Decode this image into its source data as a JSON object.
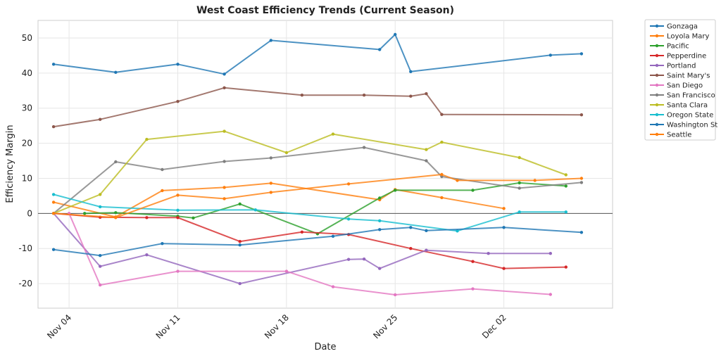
{
  "chart_data": {
    "type": "line",
    "title": "West Coast Efficiency Trends (Current Season)",
    "xlabel": "Date",
    "ylabel": "Efficiency Margin",
    "xlim": [
      "2024-11-02",
      "2024-12-09"
    ],
    "ylim": [
      -27,
      55
    ],
    "x_ticks": [
      {
        "date": "2024-11-04",
        "label": "Nov 04"
      },
      {
        "date": "2024-11-11",
        "label": "Nov 11"
      },
      {
        "date": "2024-11-18",
        "label": "Nov 18"
      },
      {
        "date": "2024-11-25",
        "label": "Nov 25"
      },
      {
        "date": "2024-12-02",
        "label": "Dec 02"
      }
    ],
    "y_ticks": [
      -20,
      -10,
      0,
      10,
      20,
      30,
      40,
      50
    ],
    "grid": true,
    "zero_line": true,
    "legend_position": "outside-right",
    "series": [
      {
        "name": "Gonzaga",
        "color": "#1f77b4",
        "points": [
          [
            "2024-11-03",
            42.5
          ],
          [
            "2024-11-07",
            40.2
          ],
          [
            "2024-11-11",
            42.5
          ],
          [
            "2024-11-14",
            39.7
          ],
          [
            "2024-11-17",
            49.3
          ],
          [
            "2024-11-24",
            46.7
          ],
          [
            "2024-11-25",
            51.0
          ],
          [
            "2024-11-26",
            40.4
          ],
          [
            "2024-12-05",
            45.1
          ],
          [
            "2024-12-07",
            45.5
          ]
        ]
      },
      {
        "name": "Loyola Mary",
        "color": "#ff7f0e",
        "points": [
          [
            "2024-11-03",
            3.2
          ],
          [
            "2024-11-07",
            -1.0
          ],
          [
            "2024-11-10",
            6.5
          ],
          [
            "2024-11-14",
            7.4
          ],
          [
            "2024-11-17",
            8.6
          ],
          [
            "2024-11-24",
            3.9
          ],
          [
            "2024-11-25",
            6.8
          ],
          [
            "2024-11-28",
            4.5
          ],
          [
            "2024-12-02",
            1.4
          ]
        ]
      },
      {
        "name": "Pacific",
        "color": "#2ca02c",
        "points": [
          [
            "2024-11-05",
            0.0
          ],
          [
            "2024-11-07",
            0.2
          ],
          [
            "2024-11-11",
            -0.8
          ],
          [
            "2024-11-12",
            -1.3
          ],
          [
            "2024-11-15",
            2.7
          ],
          [
            "2024-11-20",
            -5.8
          ],
          [
            "2024-11-24",
            4.4
          ],
          [
            "2024-11-25",
            6.6
          ],
          [
            "2024-11-30",
            6.6
          ],
          [
            "2024-12-03",
            8.7
          ],
          [
            "2024-12-06",
            7.8
          ]
        ]
      },
      {
        "name": "Pepperdine",
        "color": "#d62728",
        "points": [
          [
            "2024-11-03",
            0.0
          ],
          [
            "2024-11-06",
            -1.1
          ],
          [
            "2024-11-09",
            -1.2
          ],
          [
            "2024-11-11",
            -1.2
          ],
          [
            "2024-11-15",
            -8.0
          ],
          [
            "2024-11-19",
            -5.3
          ],
          [
            "2024-11-22",
            -6.0
          ],
          [
            "2024-11-26",
            -10.0
          ],
          [
            "2024-11-30",
            -13.7
          ],
          [
            "2024-12-02",
            -15.7
          ],
          [
            "2024-12-06",
            -15.3
          ]
        ]
      },
      {
        "name": "Portland",
        "color": "#9467bd",
        "points": [
          [
            "2024-11-03",
            0.0
          ],
          [
            "2024-11-06",
            -15.1
          ],
          [
            "2024-11-09",
            -11.8
          ],
          [
            "2024-11-15",
            -20.0
          ],
          [
            "2024-11-22",
            -13.1
          ],
          [
            "2024-11-23",
            -13.0
          ],
          [
            "2024-11-24",
            -15.7
          ],
          [
            "2024-11-27",
            -10.5
          ],
          [
            "2024-12-01",
            -11.4
          ],
          [
            "2024-12-05",
            -11.4
          ]
        ]
      },
      {
        "name": "Saint Mary's",
        "color": "#8c564b",
        "points": [
          [
            "2024-11-03",
            24.7
          ],
          [
            "2024-11-06",
            26.8
          ],
          [
            "2024-11-11",
            31.9
          ],
          [
            "2024-11-14",
            35.8
          ],
          [
            "2024-11-19",
            33.7
          ],
          [
            "2024-11-23",
            33.7
          ],
          [
            "2024-11-26",
            33.4
          ],
          [
            "2024-11-27",
            34.1
          ],
          [
            "2024-11-28",
            28.2
          ],
          [
            "2024-12-07",
            28.1
          ]
        ]
      },
      {
        "name": "San Diego",
        "color": "#e377c2",
        "points": [
          [
            "2024-11-04",
            0.0
          ],
          [
            "2024-11-06",
            -20.4
          ],
          [
            "2024-11-11",
            -16.5
          ],
          [
            "2024-11-18",
            -16.5
          ],
          [
            "2024-11-21",
            -20.9
          ],
          [
            "2024-11-25",
            -23.2
          ],
          [
            "2024-11-30",
            -21.5
          ],
          [
            "2024-12-05",
            -23.1
          ]
        ]
      },
      {
        "name": "San Francisco",
        "color": "#7f7f7f",
        "points": [
          [
            "2024-11-03",
            0.0
          ],
          [
            "2024-11-07",
            14.7
          ],
          [
            "2024-11-10",
            12.5
          ],
          [
            "2024-11-14",
            14.8
          ],
          [
            "2024-11-17",
            15.8
          ],
          [
            "2024-11-23",
            18.8
          ],
          [
            "2024-11-27",
            15.0
          ],
          [
            "2024-11-28",
            10.5
          ],
          [
            "2024-12-03",
            7.2
          ],
          [
            "2024-12-07",
            8.8
          ]
        ]
      },
      {
        "name": "Santa Clara",
        "color": "#bcbd22",
        "points": [
          [
            "2024-11-03",
            0.0
          ],
          [
            "2024-11-06",
            5.4
          ],
          [
            "2024-11-09",
            21.1
          ],
          [
            "2024-11-14",
            23.4
          ],
          [
            "2024-11-18",
            17.3
          ],
          [
            "2024-11-21",
            22.6
          ],
          [
            "2024-11-27",
            18.2
          ],
          [
            "2024-11-28",
            20.3
          ],
          [
            "2024-12-03",
            15.9
          ],
          [
            "2024-12-06",
            11.0
          ]
        ]
      },
      {
        "name": "Oregon State",
        "color": "#17becf",
        "points": [
          [
            "2024-11-03",
            5.4
          ],
          [
            "2024-11-06",
            1.9
          ],
          [
            "2024-11-11",
            0.9
          ],
          [
            "2024-11-16",
            1.0
          ],
          [
            "2024-11-22",
            -1.6
          ],
          [
            "2024-11-24",
            -2.1
          ],
          [
            "2024-11-29",
            -5.0
          ],
          [
            "2024-12-03",
            0.4
          ],
          [
            "2024-12-06",
            0.4
          ]
        ]
      },
      {
        "name": "Washington St",
        "color": "#1f77b4",
        "points": [
          [
            "2024-11-03",
            -10.3
          ],
          [
            "2024-11-06",
            -12.0
          ],
          [
            "2024-11-10",
            -8.6
          ],
          [
            "2024-11-15",
            -9.0
          ],
          [
            "2024-11-21",
            -6.5
          ],
          [
            "2024-11-24",
            -4.6
          ],
          [
            "2024-11-26",
            -4.0
          ],
          [
            "2024-11-27",
            -4.9
          ],
          [
            "2024-12-02",
            -4.0
          ],
          [
            "2024-12-07",
            -5.4
          ]
        ]
      },
      {
        "name": "Seattle",
        "color": "#ff7f0e",
        "points": [
          [
            "2024-11-03",
            0.0
          ],
          [
            "2024-11-07",
            -1.2
          ],
          [
            "2024-11-11",
            5.2
          ],
          [
            "2024-11-14",
            4.2
          ],
          [
            "2024-11-17",
            6.0
          ],
          [
            "2024-11-22",
            8.4
          ],
          [
            "2024-11-28",
            11.1
          ],
          [
            "2024-11-29",
            9.4
          ],
          [
            "2024-12-04",
            9.4
          ],
          [
            "2024-12-07",
            10.0
          ]
        ]
      }
    ]
  }
}
